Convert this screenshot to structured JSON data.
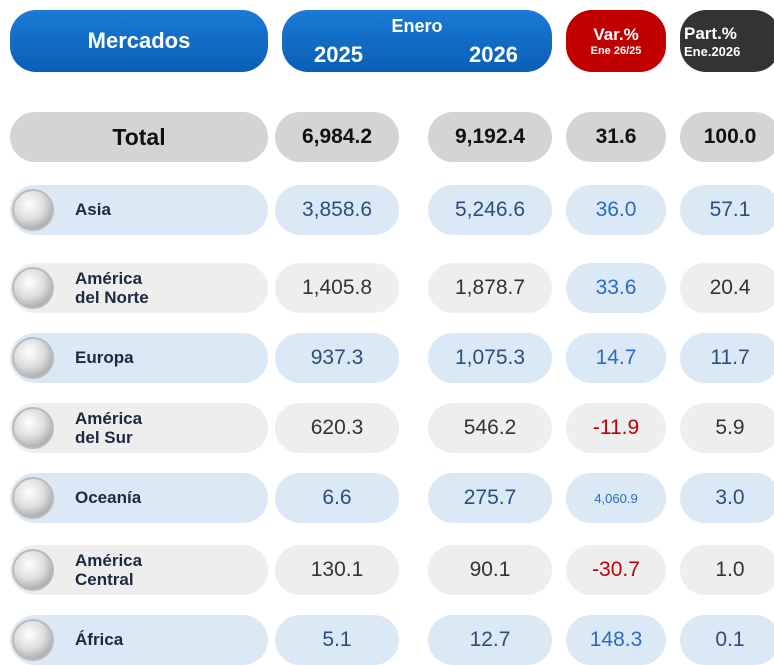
{
  "header": {
    "mercados": "Mercados",
    "enero": "Enero",
    "year_a": "2025",
    "year_b": "2026",
    "var": "Var.%",
    "var_sub": "Ene 26/25",
    "part": "Part.%",
    "part_sub": "Ene.2026"
  },
  "total": {
    "name": "Total",
    "a": "6,984.2",
    "b": "9,192.4",
    "var": "31.6",
    "part": "100.0"
  },
  "rows": [
    {
      "name": "Asia",
      "a": "3,858.6",
      "b": "5,246.6",
      "var": "36.0",
      "part": "57.1"
    },
    {
      "name": "América del Norte",
      "a": "1,405.8",
      "b": "1,878.7",
      "var": "33.6",
      "part": "20.4"
    },
    {
      "name": "Europa",
      "a": "937.3",
      "b": "1,075.3",
      "var": "14.7",
      "part": "11.7"
    },
    {
      "name": "América del Sur",
      "a": "620.3",
      "b": "546.2",
      "var": "-11.9",
      "part": "5.9"
    },
    {
      "name": "Oceanía",
      "a": "6.6",
      "b": "275.7",
      "var": "4,060.9",
      "part": "3.0"
    },
    {
      "name": "América Central",
      "a": "130.1",
      "b": "90.1",
      "var": "-30.7",
      "part": "1.0"
    },
    {
      "name": "África",
      "a": "5.1",
      "b": "12.7",
      "var": "148.3",
      "part": "0.1"
    }
  ]
}
